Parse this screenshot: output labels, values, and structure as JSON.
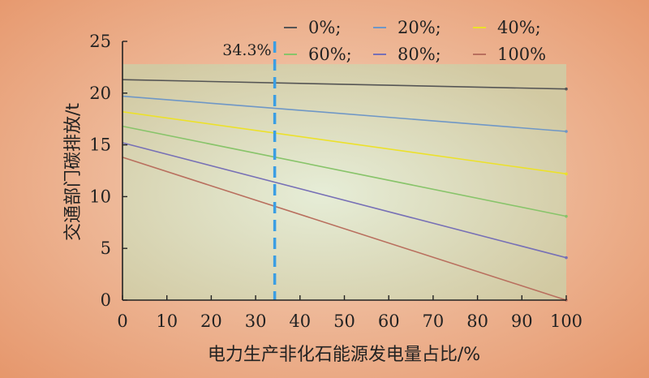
{
  "chart_data": {
    "type": "line",
    "xlabel": "电力生产非化石能源发电量占比/%",
    "ylabel": "交通部门碳排放/t",
    "xlim": [
      0,
      100
    ],
    "ylim": [
      0,
      25
    ],
    "xticks": [
      0,
      10,
      20,
      30,
      40,
      50,
      60,
      70,
      80,
      90,
      100
    ],
    "yticks": [
      0,
      5,
      10,
      15,
      20,
      25
    ],
    "grid": false,
    "legend_position": "top-right",
    "plot_area_top_value": 22.8,
    "plot_area_color": "#d2c9a2",
    "series": [
      {
        "name": "0%",
        "legend_label": "0%;",
        "color": "#555555",
        "x": [
          0,
          100
        ],
        "y": [
          21.3,
          20.4
        ]
      },
      {
        "name": "20%",
        "legend_label": "20%;",
        "color": "#6f97c6",
        "x": [
          0,
          100
        ],
        "y": [
          19.7,
          16.3
        ]
      },
      {
        "name": "40%",
        "legend_label": "40%;",
        "color": "#ece12a",
        "x": [
          0,
          100
        ],
        "y": [
          18.2,
          12.2
        ]
      },
      {
        "name": "60%",
        "legend_label": "60%;",
        "color": "#88c46a",
        "x": [
          0,
          100
        ],
        "y": [
          16.8,
          8.1
        ]
      },
      {
        "name": "80%",
        "legend_label": "80%;",
        "color": "#7770b6",
        "x": [
          0,
          100
        ],
        "y": [
          15.2,
          4.1
        ]
      },
      {
        "name": "100%",
        "legend_label": "100%",
        "color": "#b96f5e",
        "x": [
          0,
          100
        ],
        "y": [
          13.8,
          0.0
        ]
      }
    ],
    "annotation": {
      "text": "34.3%",
      "x": 34.3,
      "color": "#3b9ee3"
    }
  }
}
